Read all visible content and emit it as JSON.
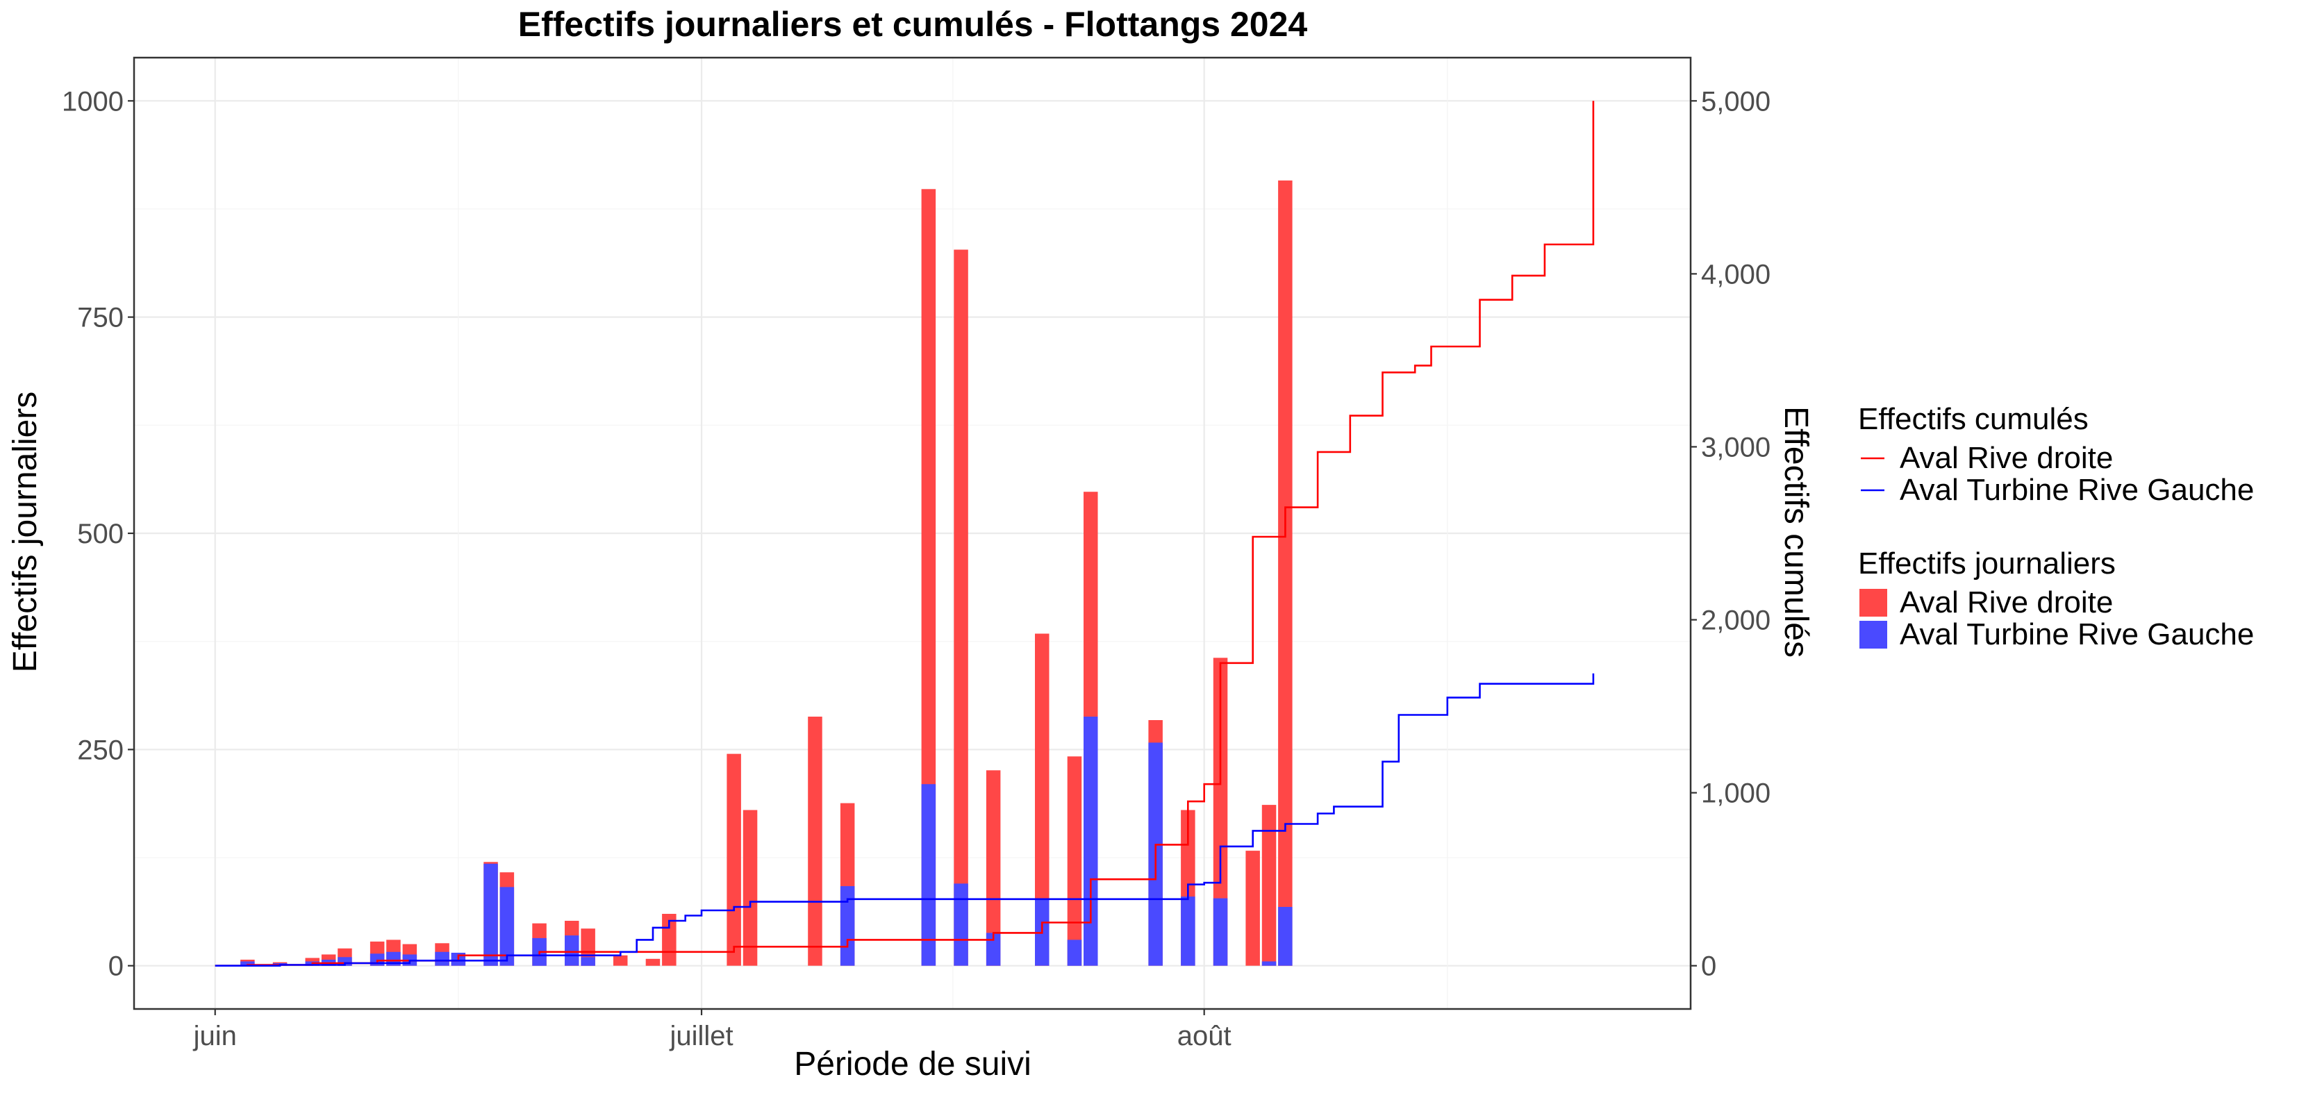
{
  "chart_data": {
    "type": "bar",
    "title": "Effectifs journaliers et cumulés - Flottangs 2024",
    "xlabel": "Période de suivi",
    "ylabel": "Effectifs journaliers",
    "y2label": "Effectifs cumulés",
    "xlim": [
      "2024-05-27",
      "2024-08-31"
    ],
    "ylim": [
      -50,
      1050
    ],
    "y2lim": [
      -250,
      5250
    ],
    "x_ticks": [
      {
        "date": "2024-06-01",
        "label": "juin"
      },
      {
        "date": "2024-07-01",
        "label": "juillet"
      },
      {
        "date": "2024-08-01",
        "label": "août"
      }
    ],
    "y_ticks": [
      {
        "value": 0,
        "label": "0"
      },
      {
        "value": 250,
        "label": "250"
      },
      {
        "value": 500,
        "label": "500"
      },
      {
        "value": 750,
        "label": "750"
      },
      {
        "value": 1000,
        "label": "1000"
      }
    ],
    "y2_ticks": [
      {
        "value": 0,
        "label": "0"
      },
      {
        "value": 1000,
        "label": "1,000"
      },
      {
        "value": 2000,
        "label": "2,000"
      },
      {
        "value": 3000,
        "label": "3,000"
      },
      {
        "value": 4000,
        "label": "4,000"
      },
      {
        "value": 5000,
        "label": "5,000"
      }
    ],
    "grid": true,
    "legend_position": "right",
    "colors": {
      "rive_droite": "#ff0000",
      "turbine_gauche": "#0000ff",
      "panel_border": "#333333"
    },
    "dates": [
      "2024-06-03",
      "2024-06-05",
      "2024-06-07",
      "2024-06-08",
      "2024-06-09",
      "2024-06-11",
      "2024-06-12",
      "2024-06-13",
      "2024-06-15",
      "2024-06-16",
      "2024-06-18",
      "2024-06-19",
      "2024-06-21",
      "2024-06-23",
      "2024-06-24",
      "2024-06-26",
      "2024-06-28",
      "2024-06-29",
      "2024-07-03",
      "2024-07-04",
      "2024-07-08",
      "2024-07-10",
      "2024-07-15",
      "2024-07-17",
      "2024-07-19",
      "2024-07-22",
      "2024-07-24",
      "2024-07-25",
      "2024-07-29",
      "2024-07-31",
      "2024-08-02",
      "2024-08-04",
      "2024-08-05",
      "2024-08-06",
      "2024-08-08",
      "2024-08-09",
      "2024-08-10",
      "2024-08-12",
      "2024-08-13",
      "2024-08-15",
      "2024-08-16",
      "2024-08-19"
    ],
    "series": [
      {
        "name": "Aval Rive droite",
        "kind": "bar",
        "legend_group": "Effectifs journaliers",
        "values": [
          7,
          4,
          9,
          13,
          20,
          28,
          30,
          25,
          26,
          5,
          120,
          108,
          49,
          52,
          43,
          12,
          8,
          60,
          245,
          180,
          288,
          188,
          898,
          828,
          226,
          384,
          242,
          548,
          284,
          180,
          356,
          133,
          186,
          908,
          0,
          0,
          0,
          0,
          0,
          0,
          0,
          0
        ]
      },
      {
        "name": "Aval Turbine Rive Gauche",
        "kind": "bar",
        "legend_group": "Effectifs journaliers",
        "values": [
          5,
          3,
          5,
          7,
          10,
          14,
          16,
          13,
          16,
          15,
          118,
          91,
          32,
          35,
          10,
          0,
          0,
          0,
          0,
          0,
          0,
          92,
          210,
          95,
          38,
          78,
          30,
          288,
          258,
          80,
          78,
          0,
          5,
          68,
          0,
          0,
          0,
          0,
          0,
          0,
          0,
          0
        ]
      }
    ],
    "cumulative_series": [
      {
        "name": "Aval Rive droite",
        "kind": "step-line",
        "legend_group": "Effectifs cumulés",
        "points": [
          {
            "date": "2024-06-01",
            "value": 0
          },
          {
            "date": "2024-06-03",
            "value": 5
          },
          {
            "date": "2024-06-07",
            "value": 15
          },
          {
            "date": "2024-06-11",
            "value": 30
          },
          {
            "date": "2024-06-16",
            "value": 60
          },
          {
            "date": "2024-06-21",
            "value": 80
          },
          {
            "date": "2024-07-03",
            "value": 110
          },
          {
            "date": "2024-07-10",
            "value": 150
          },
          {
            "date": "2024-07-19",
            "value": 190
          },
          {
            "date": "2024-07-22",
            "value": 250
          },
          {
            "date": "2024-07-25",
            "value": 500
          },
          {
            "date": "2024-07-29",
            "value": 700
          },
          {
            "date": "2024-07-31",
            "value": 950
          },
          {
            "date": "2024-08-01",
            "value": 1050
          },
          {
            "date": "2024-08-02",
            "value": 1750
          },
          {
            "date": "2024-08-04",
            "value": 2480
          },
          {
            "date": "2024-08-06",
            "value": 2650
          },
          {
            "date": "2024-08-08",
            "value": 2970
          },
          {
            "date": "2024-08-10",
            "value": 3180
          },
          {
            "date": "2024-08-12",
            "value": 3430
          },
          {
            "date": "2024-08-14",
            "value": 3470
          },
          {
            "date": "2024-08-15",
            "value": 3580
          },
          {
            "date": "2024-08-18",
            "value": 3850
          },
          {
            "date": "2024-08-20",
            "value": 3990
          },
          {
            "date": "2024-08-22",
            "value": 4170
          },
          {
            "date": "2024-08-25",
            "value": 5000
          }
        ]
      },
      {
        "name": "Aval Turbine Rive Gauche",
        "kind": "step-line",
        "legend_group": "Effectifs cumulés",
        "points": [
          {
            "date": "2024-06-01",
            "value": 0
          },
          {
            "date": "2024-06-05",
            "value": 5
          },
          {
            "date": "2024-06-09",
            "value": 15
          },
          {
            "date": "2024-06-13",
            "value": 30
          },
          {
            "date": "2024-06-19",
            "value": 60
          },
          {
            "date": "2024-06-26",
            "value": 80
          },
          {
            "date": "2024-06-27",
            "value": 150
          },
          {
            "date": "2024-06-28",
            "value": 220
          },
          {
            "date": "2024-06-29",
            "value": 260
          },
          {
            "date": "2024-06-30",
            "value": 290
          },
          {
            "date": "2024-07-01",
            "value": 320
          },
          {
            "date": "2024-07-03",
            "value": 340
          },
          {
            "date": "2024-07-04",
            "value": 370
          },
          {
            "date": "2024-07-10",
            "value": 385
          },
          {
            "date": "2024-07-17",
            "value": 385
          },
          {
            "date": "2024-07-28",
            "value": 385
          },
          {
            "date": "2024-07-31",
            "value": 470
          },
          {
            "date": "2024-08-01",
            "value": 480
          },
          {
            "date": "2024-08-02",
            "value": 690
          },
          {
            "date": "2024-08-04",
            "value": 780
          },
          {
            "date": "2024-08-06",
            "value": 820
          },
          {
            "date": "2024-08-08",
            "value": 880
          },
          {
            "date": "2024-08-09",
            "value": 920
          },
          {
            "date": "2024-08-12",
            "value": 1180
          },
          {
            "date": "2024-08-13",
            "value": 1450
          },
          {
            "date": "2024-08-16",
            "value": 1550
          },
          {
            "date": "2024-08-18",
            "value": 1630
          },
          {
            "date": "2024-08-22",
            "value": 1630
          },
          {
            "date": "2024-08-25",
            "value": 1690
          }
        ]
      }
    ],
    "legend": [
      {
        "title": "Effectifs cumulés",
        "kind": "line",
        "items": [
          {
            "label": "Aval Rive droite",
            "color": "#ff0000"
          },
          {
            "label": "Aval Turbine Rive Gauche",
            "color": "#0000ff"
          }
        ]
      },
      {
        "title": "Effectifs journaliers",
        "kind": "bar",
        "items": [
          {
            "label": "Aval Rive droite",
            "color": "#ff4747"
          },
          {
            "label": "Aval Turbine Rive Gauche",
            "color": "#4a4aff"
          }
        ]
      }
    ]
  }
}
